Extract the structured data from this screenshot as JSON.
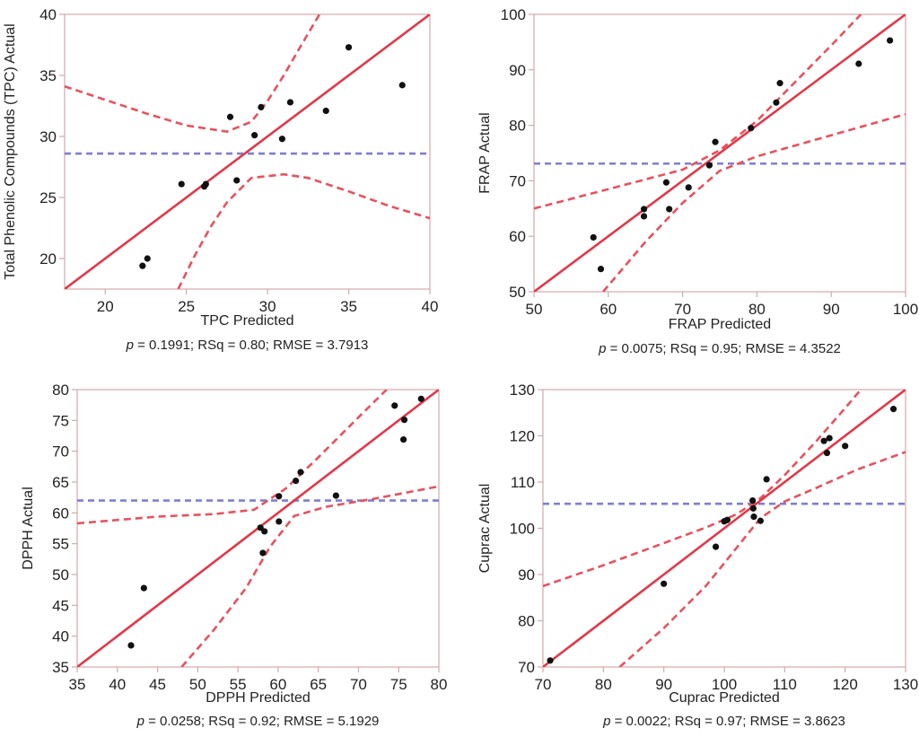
{
  "chart_data": [
    {
      "type": "scatter",
      "id": "tpc",
      "xlabel": "TPC Predicted",
      "ylabel": "Total Phenolic Compounds (TPC) Actual",
      "xlim": [
        17.5,
        40
      ],
      "ylim": [
        17.5,
        40
      ],
      "xticks": [
        20,
        25,
        30,
        35,
        40
      ],
      "yticks": [
        20,
        25,
        30,
        35,
        40
      ],
      "stats": {
        "p_label": "p",
        "text": " = 0.1991; RSq = 0.80; RMSE = 3.7913"
      },
      "mean_actual": 28.6,
      "fit_line": [
        [
          17.5,
          17.5
        ],
        [
          40,
          40
        ]
      ],
      "confidence_upper": [
        [
          17.5,
          34.1
        ],
        [
          20,
          33.0
        ],
        [
          22.5,
          31.9
        ],
        [
          25,
          30.9
        ],
        [
          27.5,
          30.4
        ],
        [
          29,
          31.2
        ],
        [
          30,
          32.9
        ],
        [
          31,
          35.0
        ],
        [
          32,
          37.3
        ],
        [
          33.2,
          40
        ]
      ],
      "confidence_lower": [
        [
          24.5,
          17.5
        ],
        [
          25.5,
          20.2
        ],
        [
          26.5,
          22.6
        ],
        [
          27.5,
          24.6
        ],
        [
          29,
          26.6
        ],
        [
          31,
          26.9
        ],
        [
          32.5,
          26.6
        ],
        [
          35,
          25.5
        ],
        [
          37.5,
          24.3
        ],
        [
          40,
          23.3
        ]
      ],
      "points": [
        [
          22.3,
          19.4
        ],
        [
          22.6,
          20.0
        ],
        [
          24.7,
          26.1
        ],
        [
          26.1,
          25.9
        ],
        [
          26.2,
          26.1
        ],
        [
          27.7,
          31.6
        ],
        [
          28.1,
          26.4
        ],
        [
          29.2,
          30.1
        ],
        [
          29.6,
          32.4
        ],
        [
          30.9,
          29.8
        ],
        [
          31.4,
          32.8
        ],
        [
          33.6,
          32.1
        ],
        [
          35.0,
          37.3
        ],
        [
          38.3,
          34.2
        ]
      ]
    },
    {
      "type": "scatter",
      "id": "frap",
      "xlabel": "FRAP Predicted",
      "ylabel": "FRAP Actual",
      "xlim": [
        50,
        100
      ],
      "ylim": [
        50,
        100
      ],
      "xticks": [
        50,
        60,
        70,
        80,
        90,
        100
      ],
      "yticks": [
        50,
        60,
        70,
        80,
        90,
        100
      ],
      "stats": {
        "p_label": "p",
        "text": " = 0.0075; RSq = 0.95; RMSE = 4.3522"
      },
      "mean_actual": 73.1,
      "fit_line": [
        [
          50,
          50
        ],
        [
          100,
          100
        ]
      ],
      "confidence_upper": [
        [
          50,
          65.0
        ],
        [
          60,
          68.5
        ],
        [
          70,
          72.0
        ],
        [
          75,
          75.5
        ],
        [
          80,
          80.8
        ],
        [
          85,
          87.6
        ],
        [
          90,
          94.4
        ],
        [
          94,
          100
        ]
      ],
      "confidence_lower": [
        [
          59.3,
          50
        ],
        [
          65,
          59.0
        ],
        [
          70,
          66.0
        ],
        [
          75,
          71.8
        ],
        [
          80,
          74.4
        ],
        [
          90,
          78.2
        ],
        [
          100,
          82.0
        ]
      ],
      "points": [
        [
          58.0,
          59.8
        ],
        [
          59.0,
          54.1
        ],
        [
          64.8,
          63.6
        ],
        [
          64.8,
          64.9
        ],
        [
          67.8,
          69.7
        ],
        [
          68.2,
          64.9
        ],
        [
          70.8,
          68.8
        ],
        [
          73.6,
          72.8
        ],
        [
          74.4,
          77.0
        ],
        [
          79.2,
          79.5
        ],
        [
          82.6,
          84.1
        ],
        [
          83.1,
          87.6
        ],
        [
          93.7,
          91.1
        ],
        [
          97.9,
          95.3
        ]
      ]
    },
    {
      "type": "scatter",
      "id": "dpph",
      "xlabel": "DPPH Predicted",
      "ylabel": "DPPH Actual",
      "xlim": [
        35,
        80
      ],
      "ylim": [
        35,
        80
      ],
      "xticks": [
        35,
        40,
        45,
        50,
        55,
        60,
        65,
        70,
        75,
        80
      ],
      "yticks": [
        35,
        40,
        45,
        50,
        55,
        60,
        65,
        70,
        75,
        80
      ],
      "stats": {
        "p_label": "p",
        "text": " = 0.0258; RSq = 0.92; RMSE = 5.1929"
      },
      "mean_actual": 62.0,
      "fit_line": [
        [
          35,
          35
        ],
        [
          80,
          80
        ]
      ],
      "confidence_upper": [
        [
          35,
          58.3
        ],
        [
          45,
          59.4
        ],
        [
          52,
          59.8
        ],
        [
          57,
          60.5
        ],
        [
          61,
          64.0
        ],
        [
          65,
          69.0
        ],
        [
          70,
          75.5
        ],
        [
          73.5,
          80
        ]
      ],
      "confidence_lower": [
        [
          48,
          35
        ],
        [
          52,
          41.0
        ],
        [
          56,
          47.8
        ],
        [
          59,
          54.5
        ],
        [
          62,
          59.5
        ],
        [
          66,
          61.0
        ],
        [
          72,
          62.3
        ],
        [
          80,
          64.3
        ]
      ],
      "points": [
        [
          41.7,
          38.5
        ],
        [
          43.3,
          47.8
        ],
        [
          57.8,
          57.6
        ],
        [
          58.1,
          53.5
        ],
        [
          58.3,
          57.0
        ],
        [
          60.1,
          62.7
        ],
        [
          60.1,
          58.6
        ],
        [
          62.2,
          65.2
        ],
        [
          62.8,
          66.6
        ],
        [
          67.2,
          62.8
        ],
        [
          74.5,
          77.4
        ],
        [
          75.6,
          71.9
        ],
        [
          75.7,
          75.1
        ],
        [
          77.8,
          78.5
        ]
      ]
    },
    {
      "type": "scatter",
      "id": "cuprac",
      "xlabel": "Cuprac Predicted",
      "ylabel": "Cuprac Actual",
      "xlim": [
        70,
        130
      ],
      "ylim": [
        70,
        130
      ],
      "xticks": [
        70,
        80,
        90,
        100,
        110,
        120,
        130
      ],
      "yticks": [
        70,
        80,
        90,
        100,
        110,
        120,
        130
      ],
      "stats": {
        "p_label": "p",
        "text": " = 0.0022; RSq = 0.97; RMSE = 3.8623"
      },
      "mean_actual": 105.3,
      "fit_line": [
        [
          70,
          70
        ],
        [
          130,
          130
        ]
      ],
      "confidence_upper": [
        [
          70,
          87.5
        ],
        [
          80,
          92.0
        ],
        [
          90,
          96.8
        ],
        [
          97,
          100.2
        ],
        [
          102,
          103.0
        ],
        [
          106,
          106.5
        ],
        [
          110,
          111.5
        ],
        [
          115,
          118.5
        ],
        [
          120,
          126.0
        ],
        [
          122.6,
          130
        ]
      ],
      "confidence_lower": [
        [
          82.7,
          70
        ],
        [
          90,
          78.4
        ],
        [
          97,
          87.6
        ],
        [
          102,
          95.7
        ],
        [
          106,
          102.2
        ],
        [
          110,
          105.8
        ],
        [
          115,
          108.6
        ],
        [
          122,
          112.7
        ],
        [
          130,
          116.5
        ]
      ],
      "points": [
        [
          71.2,
          71.4
        ],
        [
          90.0,
          88.0
        ],
        [
          98.6,
          96.0
        ],
        [
          100.0,
          101.5
        ],
        [
          100.5,
          101.8
        ],
        [
          104.7,
          106.0
        ],
        [
          104.8,
          104.3
        ],
        [
          104.9,
          102.5
        ],
        [
          106.0,
          101.6
        ],
        [
          107.0,
          110.6
        ],
        [
          116.5,
          118.9
        ],
        [
          117.0,
          116.3
        ],
        [
          117.4,
          119.5
        ],
        [
          120.0,
          117.8
        ],
        [
          128.0,
          125.8
        ]
      ]
    }
  ],
  "colors": {
    "axis": "#d4a8ab",
    "fit": "#e23848",
    "confidence": "#e8515c",
    "mean": "#7b7fd4",
    "point": "#111111"
  }
}
